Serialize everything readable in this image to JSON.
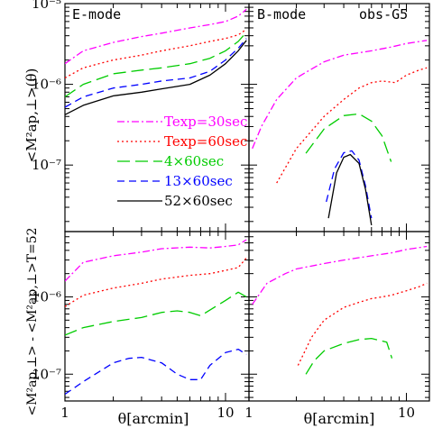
{
  "figure": {
    "ylabel_top": "<M²ap,⊥>(θ)",
    "ylabel_bottom": "<M²ap,⊥> - <M²ap,⊥>T=52",
    "xlabel": "θ[arcmin]"
  },
  "chart_data": [
    {
      "type": "line",
      "panel": "top-left",
      "label": "E-mode",
      "xscale": "log",
      "yscale": "log",
      "xlim": [
        1,
        14
      ],
      "ylim": [
        1.5e-08,
        1e-05
      ],
      "yticks": [
        "10⁻⁵",
        "10⁻⁶",
        "10⁻⁷"
      ],
      "legend": {
        "placement": "lower-center",
        "entries": [
          {
            "text": "Texp=30sec",
            "color": "#ff00ff",
            "dash": "8,3,2,3"
          },
          {
            "text": "Texp=60sec",
            "color": "#ff0000",
            "dash": "2,3"
          },
          {
            "text": "4×60sec",
            "color": "#00cc00",
            "dash": "14,6"
          },
          {
            "text": "13×60sec",
            "color": "#0000ff",
            "dash": "8,5"
          },
          {
            "text": "52×60sec",
            "color": "#000000",
            "dash": ""
          }
        ]
      },
      "series": [
        {
          "name": "Texp=30sec",
          "color": "#ff00ff",
          "dash": "8,3,2,3",
          "x": [
            1,
            1.3,
            2,
            3,
            4,
            6,
            8,
            10,
            12,
            13.5
          ],
          "y": [
            1.8e-06,
            2.6e-06,
            3.3e-06,
            3.9e-06,
            4.3e-06,
            5e-06,
            5.5e-06,
            6e-06,
            7e-06,
            8.5e-06
          ]
        },
        {
          "name": "Texp=60sec",
          "color": "#ff0000",
          "dash": "2,3",
          "x": [
            1,
            1.3,
            2,
            3,
            4,
            6,
            8,
            10,
            12,
            13.5
          ],
          "y": [
            1.2e-06,
            1.6e-06,
            2e-06,
            2.3e-06,
            2.6e-06,
            3e-06,
            3.4e-06,
            3.7e-06,
            4.1e-06,
            4.8e-06
          ]
        },
        {
          "name": "4×60sec",
          "color": "#00cc00",
          "dash": "14,6",
          "x": [
            1,
            1.3,
            2,
            3,
            4,
            6,
            8,
            10,
            12,
            13.5
          ],
          "y": [
            7e-07,
            1e-06,
            1.35e-06,
            1.5e-06,
            1.6e-06,
            1.8e-06,
            2.1e-06,
            2.6e-06,
            3.4e-06,
            4.4e-06
          ]
        },
        {
          "name": "13×60sec",
          "color": "#0000ff",
          "dash": "8,5",
          "x": [
            1,
            1.3,
            2,
            3,
            4,
            6,
            8,
            10,
            12,
            13.5
          ],
          "y": [
            5.2e-07,
            7e-07,
            9e-07,
            1e-06,
            1.1e-06,
            1.2e-06,
            1.45e-06,
            2e-06,
            2.8e-06,
            3.7e-06
          ]
        },
        {
          "name": "52×60sec",
          "color": "#000000",
          "dash": "",
          "x": [
            1,
            1.3,
            2,
            3,
            4,
            6,
            8,
            10,
            12,
            13.5
          ],
          "y": [
            4.2e-07,
            5.5e-07,
            7.2e-07,
            8e-07,
            8.8e-07,
            1e-06,
            1.3e-06,
            1.8e-06,
            2.6e-06,
            3.5e-06
          ]
        }
      ]
    },
    {
      "type": "line",
      "panel": "top-right",
      "label": "B-mode",
      "label2": "obs-G5",
      "xscale": "log",
      "yscale": "log",
      "xlim": [
        1,
        14
      ],
      "ylim": [
        1.5e-08,
        1e-05
      ],
      "series": [
        {
          "name": "Texp=30sec",
          "color": "#ff00ff",
          "dash": "8,3,2,3",
          "x": [
            1.05,
            1.2,
            1.5,
            2,
            3,
            4,
            6,
            8,
            10,
            13.5
          ],
          "y": [
            1.6e-07,
            3e-07,
            6.5e-07,
            1.2e-06,
            1.9e-06,
            2.3e-06,
            2.6e-06,
            2.9e-06,
            3.2e-06,
            3.5e-06
          ]
        },
        {
          "name": "Texp=60sec",
          "color": "#ff0000",
          "dash": "2,3",
          "x": [
            1.5,
            2,
            3,
            4,
            5,
            6,
            7,
            8.5,
            10,
            12,
            13.5
          ],
          "y": [
            6e-08,
            1.6e-07,
            4e-07,
            6.5e-07,
            9e-07,
            1.05e-06,
            1.1e-06,
            1.05e-06,
            1.3e-06,
            1.5e-06,
            1.6e-06
          ]
        },
        {
          "name": "4×60sec",
          "color": "#00cc00",
          "dash": "14,6",
          "x": [
            2.3,
            3,
            4,
            5,
            6,
            7,
            8
          ],
          "y": [
            1.4e-07,
            2.8e-07,
            4.1e-07,
            4.3e-07,
            3.5e-07,
            2.3e-07,
            1.1e-07
          ]
        },
        {
          "name": "13×60sec",
          "color": "#0000ff",
          "dash": "8,5",
          "x": [
            3.1,
            3.5,
            4,
            4.5,
            5,
            5.5,
            6
          ],
          "y": [
            3.5e-08,
            9e-08,
            1.42e-07,
            1.5e-07,
            1.15e-07,
            5.5e-08,
            2.2e-08
          ]
        },
        {
          "name": "52×60sec",
          "color": "#000000",
          "dash": "",
          "x": [
            3.2,
            3.6,
            4,
            4.4,
            5,
            5.5,
            6
          ],
          "y": [
            2.2e-08,
            8e-08,
            1.25e-07,
            1.35e-07,
            1.05e-07,
            5e-08,
            1.8e-08
          ]
        }
      ]
    },
    {
      "type": "line",
      "panel": "bottom-left",
      "xscale": "log",
      "yscale": "log",
      "xlim": [
        1,
        14
      ],
      "ylim": [
        4.5e-08,
        7e-06
      ],
      "yticks": [
        "10⁻⁶",
        "10⁻⁷"
      ],
      "xticks": [
        "1",
        "10"
      ],
      "series": [
        {
          "name": "Texp=30sec",
          "color": "#ff00ff",
          "dash": "8,3,2,3",
          "x": [
            1,
            1.3,
            2,
            3,
            4,
            6,
            8,
            10,
            12,
            13.5
          ],
          "y": [
            1.6e-06,
            2.8e-06,
            3.4e-06,
            3.8e-06,
            4.2e-06,
            4.4e-06,
            4.3e-06,
            4.5e-06,
            4.7e-06,
            5.5e-06
          ]
        },
        {
          "name": "Texp=60sec",
          "color": "#ff0000",
          "dash": "2,3",
          "x": [
            1,
            1.3,
            2,
            3,
            4,
            6,
            8,
            10,
            12,
            13.5
          ],
          "y": [
            7.5e-07,
            1.05e-06,
            1.3e-06,
            1.5e-06,
            1.7e-06,
            1.9e-06,
            2e-06,
            2.2e-06,
            2.4e-06,
            3.2e-06
          ]
        },
        {
          "name": "4×60sec",
          "color": "#00cc00",
          "dash": "14,6",
          "x": [
            1,
            1.3,
            2,
            3,
            4,
            5,
            6,
            7,
            8.5,
            10,
            12,
            13.5
          ],
          "y": [
            3.2e-07,
            4e-07,
            4.8e-07,
            5.4e-07,
            6.3e-07,
            6.6e-07,
            6.3e-07,
            5.7e-07,
            7.3e-07,
            9e-07,
            1.15e-06,
            1e-06
          ]
        },
        {
          "name": "13×60sec",
          "color": "#0000ff",
          "dash": "8,5",
          "x": [
            1,
            1.3,
            2,
            2.5,
            3,
            4,
            5,
            6,
            7,
            8,
            10,
            12,
            13.5
          ],
          "y": [
            5.5e-08,
            8e-08,
            1.4e-07,
            1.6e-07,
            1.65e-07,
            1.4e-07,
            1e-07,
            8.5e-08,
            8.5e-08,
            1.3e-07,
            1.9e-07,
            2.1e-07,
            1.8e-07
          ]
        }
      ]
    },
    {
      "type": "line",
      "panel": "bottom-right",
      "xscale": "log",
      "yscale": "log",
      "xlim": [
        1,
        14
      ],
      "ylim": [
        4.5e-08,
        7e-06
      ],
      "xticks": [
        "1",
        "10"
      ],
      "series": [
        {
          "name": "Texp=30sec",
          "color": "#ff00ff",
          "dash": "8,3,2,3",
          "x": [
            1.05,
            1.3,
            1.7,
            2,
            3,
            4,
            6,
            8,
            10,
            13.5
          ],
          "y": [
            8e-07,
            1.5e-06,
            2e-06,
            2.3e-06,
            2.7e-06,
            3e-06,
            3.4e-06,
            3.7e-06,
            4.1e-06,
            4.5e-06
          ]
        },
        {
          "name": "Texp=60sec",
          "color": "#ff0000",
          "dash": "2,3",
          "x": [
            2.05,
            2.5,
            3,
            4,
            5,
            6,
            7,
            8,
            10,
            12,
            13.5
          ],
          "y": [
            1.3e-07,
            3e-07,
            5e-07,
            7.3e-07,
            8.5e-07,
            9.5e-07,
            1e-06,
            1.05e-06,
            1.2e-06,
            1.35e-06,
            1.5e-06
          ]
        },
        {
          "name": "4×60sec",
          "color": "#00cc00",
          "dash": "14,6",
          "x": [
            2.3,
            2.6,
            3,
            4,
            5,
            6,
            7.5,
            8.1
          ],
          "y": [
            1e-07,
            1.5e-07,
            2e-07,
            2.5e-07,
            2.8e-07,
            2.9e-07,
            2.6e-07,
            1.6e-07
          ]
        }
      ]
    }
  ]
}
